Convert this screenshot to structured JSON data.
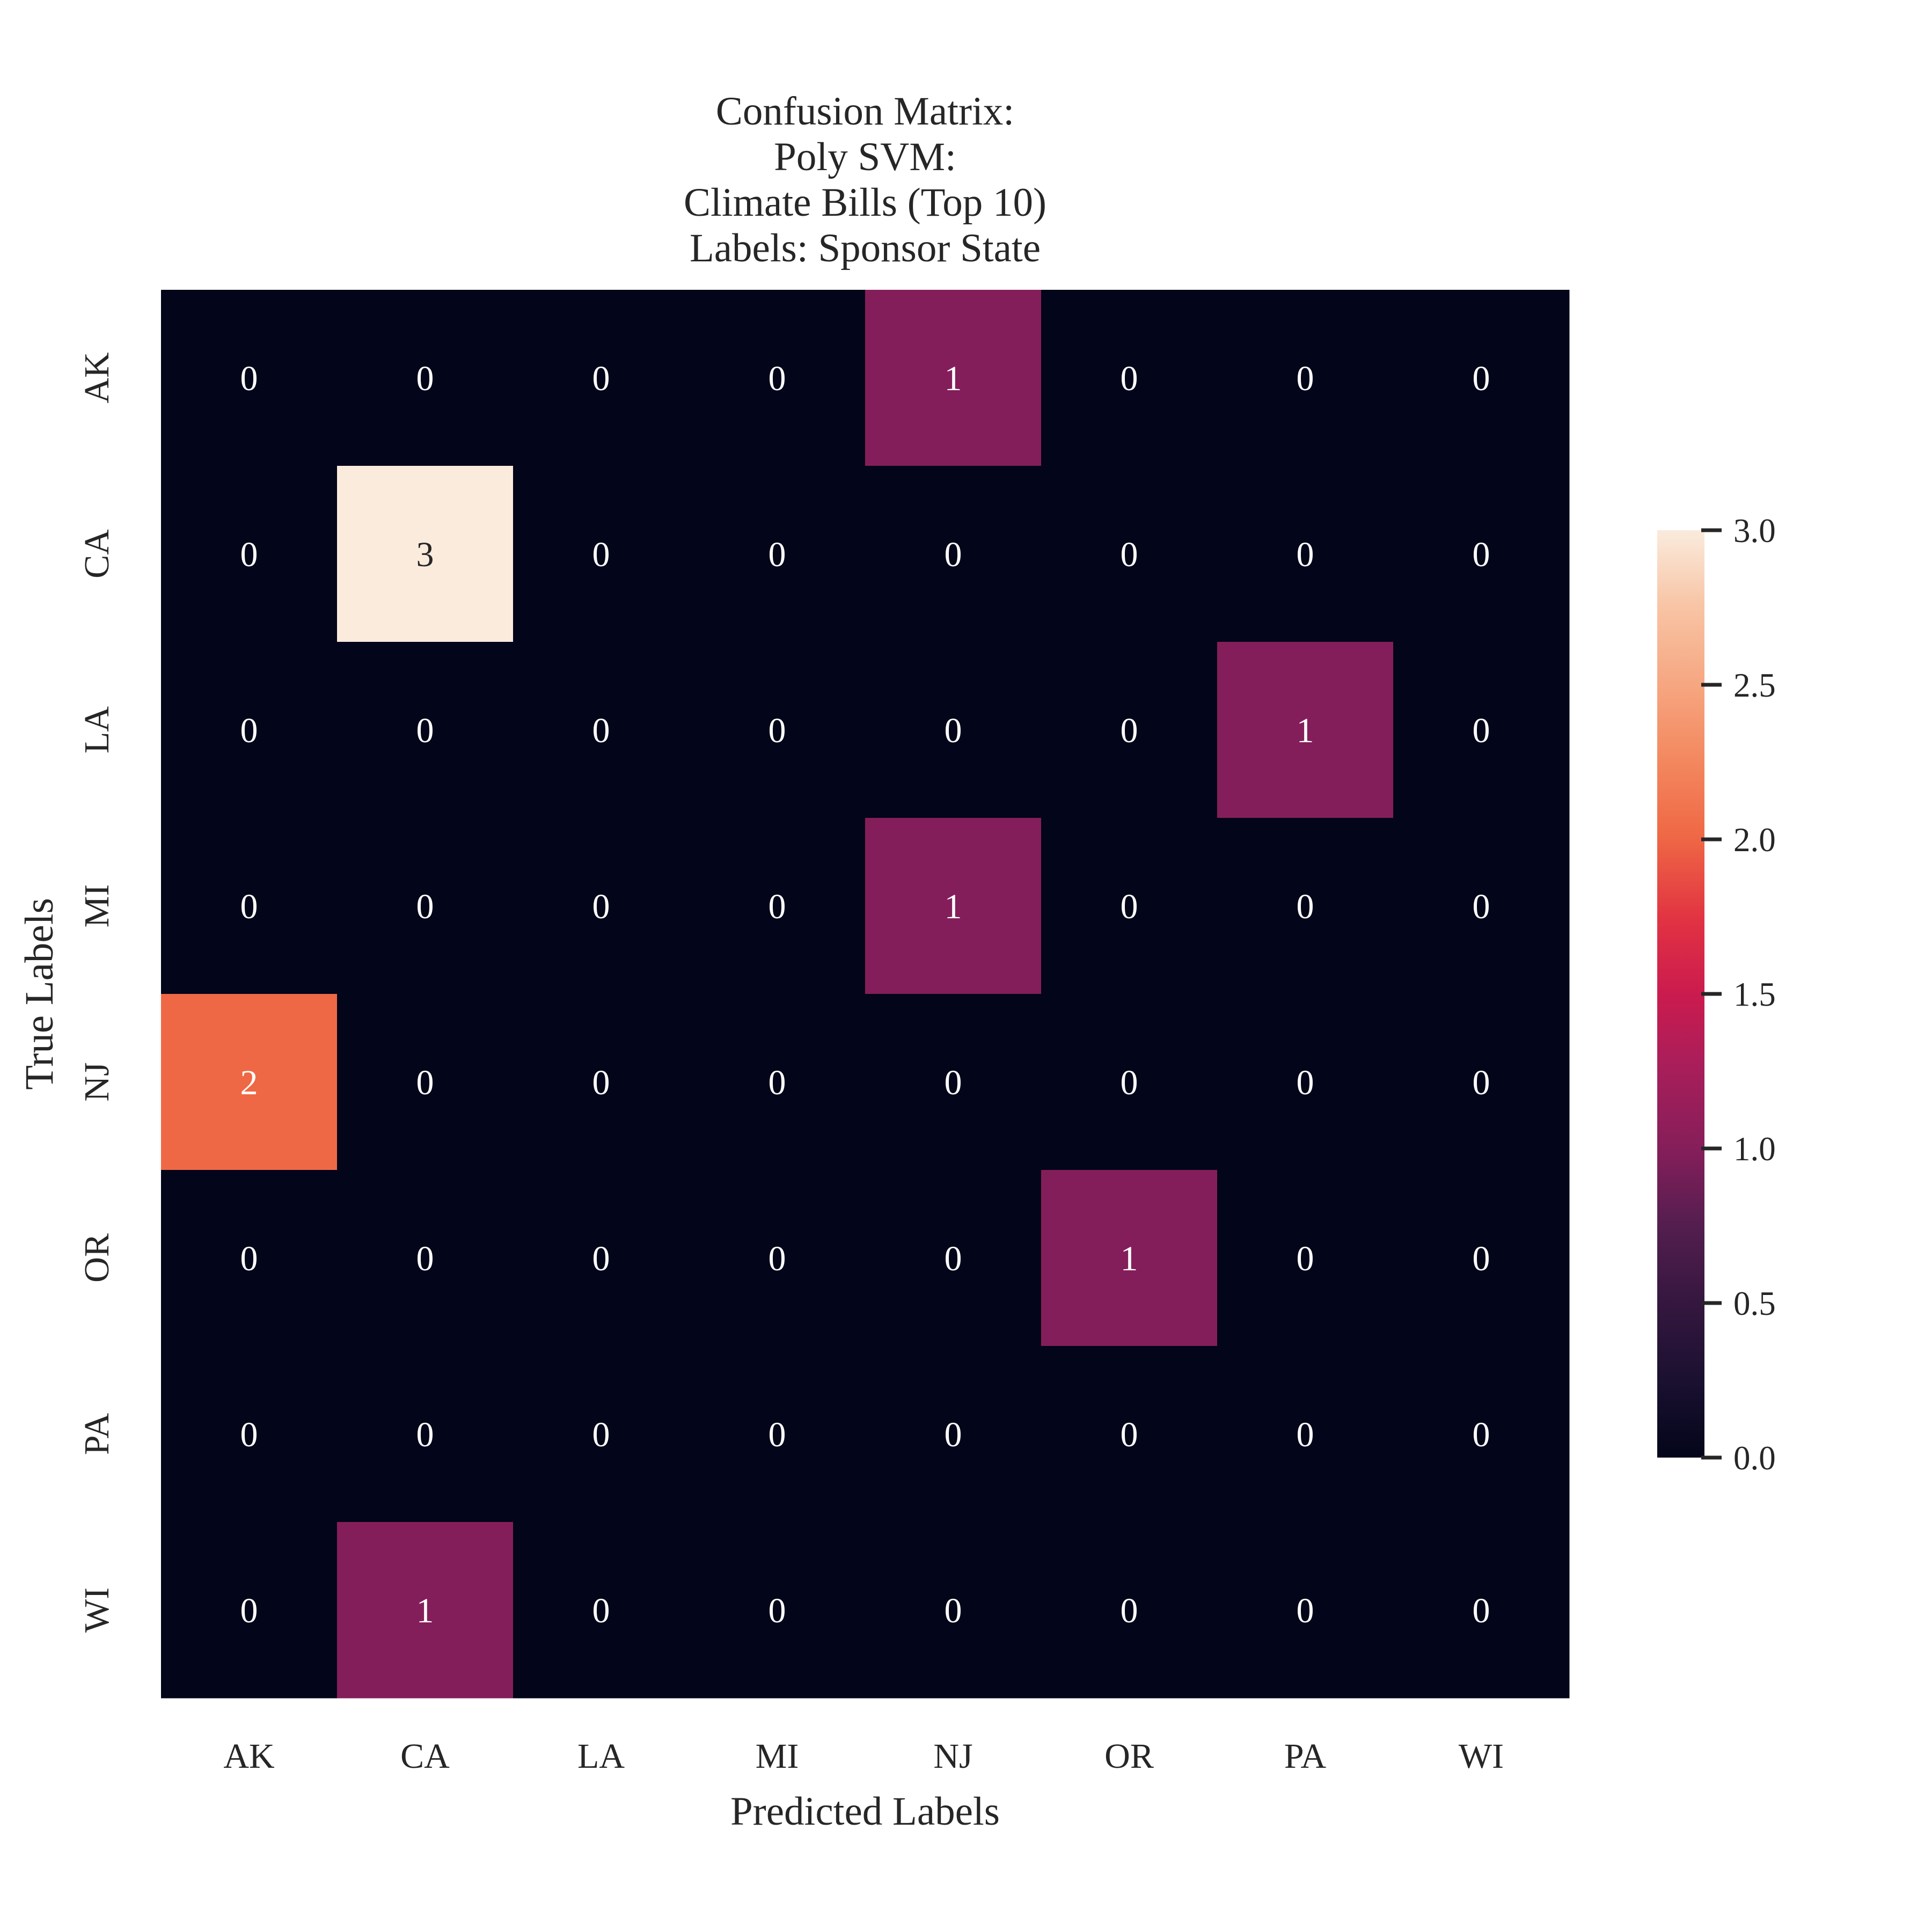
{
  "chart_data": {
    "type": "heatmap",
    "title_lines": [
      "Confusion Matrix:",
      "Poly SVM:",
      "Climate Bills (Top 10)",
      "Labels: Sponsor State"
    ],
    "xlabel": "Predicted Labels",
    "ylabel": "True Labels",
    "x_categories": [
      "AK",
      "CA",
      "LA",
      "MI",
      "NJ",
      "OR",
      "PA",
      "WI"
    ],
    "y_categories": [
      "AK",
      "CA",
      "LA",
      "MI",
      "NJ",
      "OR",
      "PA",
      "WI"
    ],
    "values": [
      [
        0,
        0,
        0,
        0,
        1,
        0,
        0,
        0
      ],
      [
        0,
        3,
        0,
        0,
        0,
        0,
        0,
        0
      ],
      [
        0,
        0,
        0,
        0,
        0,
        0,
        1,
        0
      ],
      [
        0,
        0,
        0,
        0,
        1,
        0,
        0,
        0
      ],
      [
        2,
        0,
        0,
        0,
        0,
        0,
        0,
        0
      ],
      [
        0,
        0,
        0,
        0,
        0,
        1,
        0,
        0
      ],
      [
        0,
        0,
        0,
        0,
        0,
        0,
        0,
        0
      ],
      [
        0,
        1,
        0,
        0,
        0,
        0,
        0,
        0
      ]
    ],
    "annotations": true,
    "colormap": "rocket",
    "color_range": [
      0,
      3
    ],
    "colorbar_ticks": [
      "0.0",
      "0.5",
      "1.0",
      "1.5",
      "2.0",
      "2.5",
      "3.0"
    ],
    "grid": false,
    "legend": "colorbar right"
  },
  "colors": {
    "zero": "#03051a",
    "one": "#841e5a",
    "two": "#ef6845",
    "three": "#faebdd",
    "text_light": "#ffffff",
    "text_dark": "#262626"
  }
}
